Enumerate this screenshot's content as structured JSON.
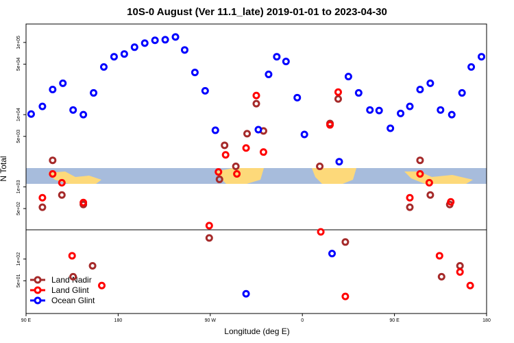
{
  "chart_data": {
    "type": "scatter",
    "title": "10S-0 August (Ver 11.1_late)   2019-01-01 to 2023-04-30",
    "x_label": "Longitude (deg E)",
    "y_label": "N Total",
    "xlim": [
      90,
      540
    ],
    "xticks": [
      {
        "value": 90,
        "label": "90 E"
      },
      {
        "value": 180,
        "label": "180"
      },
      {
        "value": 270,
        "label": "90 W"
      },
      {
        "value": 360,
        "label": "0"
      },
      {
        "value": 450,
        "label": "90 E"
      },
      {
        "value": 540,
        "label": "180"
      }
    ],
    "ylim": [
      17.6,
      180000
    ],
    "y_log": true,
    "yticks": [
      {
        "value": 100000,
        "label": "1e+05"
      },
      {
        "value": 50000,
        "label": "5e+04"
      },
      {
        "value": 10000,
        "label": "1e+04"
      },
      {
        "value": 5000,
        "label": "5e+03"
      },
      {
        "value": 1000,
        "label": "1e+03"
      },
      {
        "value": 500,
        "label": "5e+02"
      },
      {
        "value": 100,
        "label": "1e+02"
      },
      {
        "value": 50,
        "label": "5e+01"
      }
    ],
    "legend": "bottom-left",
    "series": [
      {
        "name": "Land Nadir",
        "color": "#a52a2a",
        "x": [
          116,
          106,
          125,
          146,
          284,
          279,
          295,
          306,
          315,
          322,
          269,
          377,
          387,
          395,
          402,
          475,
          465,
          485,
          504,
          136,
          155,
          496,
          514
        ],
        "values": [
          2330,
          521,
          771,
          569,
          3760,
          1270,
          1920,
          5450,
          14200,
          5940,
          196,
          1920,
          7540,
          16500,
          172,
          2330,
          521,
          771,
          569,
          56.9,
          80.5,
          56.9,
          80.5
        ]
      },
      {
        "name": "Land Glint",
        "color": "#ff0000",
        "x": [
          116,
          106,
          125,
          146,
          285,
          278,
          296,
          305,
          315,
          322,
          269,
          378,
          387,
          395,
          402,
          475,
          465,
          484,
          505,
          135,
          164,
          494,
          514,
          524
        ],
        "values": [
          1510,
          706,
          1140,
          606,
          2770,
          1610,
          1510,
          3450,
          18400,
          3030,
          290,
          238,
          7210,
          20500,
          30.3,
          1510,
          706,
          1140,
          619,
          111,
          42.9,
          111,
          66.2,
          42.9
        ]
      },
      {
        "name": "Ocean Glint",
        "color": "#0000ff",
        "x": [
          95,
          106,
          116,
          126,
          136,
          146,
          156,
          166,
          176,
          186,
          196,
          206,
          216,
          226,
          236,
          245,
          255,
          265,
          275,
          317,
          327,
          335,
          344,
          355,
          362,
          396,
          405,
          415,
          426,
          435,
          446,
          456,
          465,
          475,
          485,
          495,
          506,
          516,
          525,
          535,
          305,
          389
        ],
        "values": [
          10200,
          13000,
          22300,
          27200,
          11600,
          10000,
          20000,
          45700,
          63400,
          69200,
          85900,
          97900,
          107000,
          109000,
          119000,
          78700,
          38400,
          21400,
          6070,
          6200,
          36100,
          63400,
          54500,
          17200,
          5320,
          2230,
          33700,
          20000,
          11600,
          11400,
          6470,
          10400,
          13000,
          22300,
          27200,
          11600,
          10000,
          20000,
          45700,
          63400,
          33,
          119
        ]
      }
    ]
  }
}
